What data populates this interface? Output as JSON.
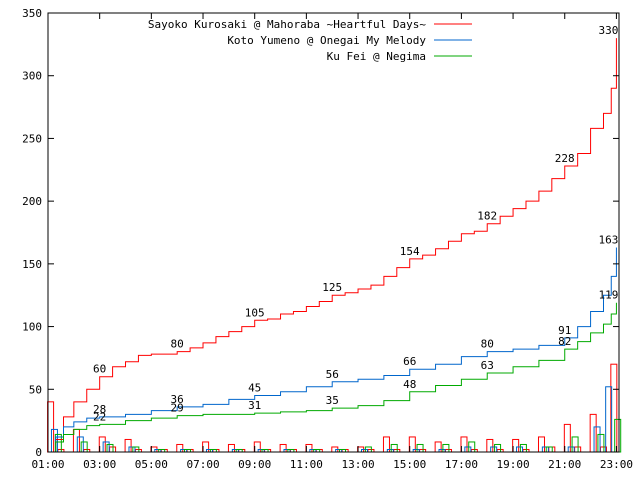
{
  "chart_data": {
    "type": "line",
    "title": "",
    "xlabel": "",
    "ylabel": "",
    "xlim": [
      1,
      23.1
    ],
    "ylim": [
      0,
      350
    ],
    "x_ticks": [
      "01:00",
      "03:00",
      "05:00",
      "07:00",
      "09:00",
      "11:00",
      "13:00",
      "15:00",
      "17:00",
      "19:00",
      "21:00",
      "23:00"
    ],
    "y_ticks": [
      "0",
      "50",
      "100",
      "150",
      "200",
      "250",
      "300",
      "350"
    ],
    "legend_position": "top-right",
    "grid": false,
    "series": [
      {
        "name": "Sayoko Kurosaki @ Mahoraba ~Heartful Days~",
        "color": "#ff0000",
        "points": [
          [
            1,
            0
          ],
          [
            1.3,
            10
          ],
          [
            1.6,
            28
          ],
          [
            2,
            40
          ],
          [
            2.5,
            50
          ],
          [
            3,
            60
          ],
          [
            3.5,
            68
          ],
          [
            4,
            72
          ],
          [
            4.5,
            77
          ],
          [
            5,
            78
          ],
          [
            5.5,
            78
          ],
          [
            6,
            80
          ],
          [
            6.5,
            83
          ],
          [
            7,
            87
          ],
          [
            7.5,
            92
          ],
          [
            8,
            96
          ],
          [
            8.5,
            100
          ],
          [
            9,
            105
          ],
          [
            9.5,
            106
          ],
          [
            10,
            110
          ],
          [
            10.5,
            112
          ],
          [
            11,
            116
          ],
          [
            11.5,
            120
          ],
          [
            12,
            125
          ],
          [
            12.5,
            127
          ],
          [
            13,
            130
          ],
          [
            13.5,
            133
          ],
          [
            14,
            140
          ],
          [
            14.5,
            147
          ],
          [
            15,
            154
          ],
          [
            15.5,
            157
          ],
          [
            16,
            162
          ],
          [
            16.5,
            168
          ],
          [
            17,
            174
          ],
          [
            17.5,
            176
          ],
          [
            18,
            182
          ],
          [
            18.5,
            188
          ],
          [
            19,
            194
          ],
          [
            19.5,
            200
          ],
          [
            20,
            208
          ],
          [
            20.5,
            218
          ],
          [
            21,
            228
          ],
          [
            21.5,
            238
          ],
          [
            22,
            258
          ],
          [
            22.5,
            270
          ],
          [
            22.8,
            290
          ],
          [
            23,
            330
          ]
        ],
        "labels": [
          [
            3,
            60
          ],
          [
            6,
            80
          ],
          [
            9,
            105
          ],
          [
            12,
            125
          ],
          [
            15,
            154
          ],
          [
            18,
            182
          ],
          [
            21,
            228
          ],
          [
            23,
            330
          ]
        ]
      },
      {
        "name": "Koto Yumeno @ Onegai My Melody",
        "color": "#0066cc",
        "points": [
          [
            1,
            0
          ],
          [
            1.3,
            12
          ],
          [
            1.6,
            20
          ],
          [
            2,
            24
          ],
          [
            2.5,
            27
          ],
          [
            3,
            28
          ],
          [
            4,
            30
          ],
          [
            5,
            33
          ],
          [
            6,
            36
          ],
          [
            7,
            38
          ],
          [
            8,
            42
          ],
          [
            9,
            45
          ],
          [
            10,
            48
          ],
          [
            11,
            52
          ],
          [
            12,
            56
          ],
          [
            13,
            58
          ],
          [
            14,
            61
          ],
          [
            15,
            66
          ],
          [
            16,
            70
          ],
          [
            17,
            76
          ],
          [
            18,
            80
          ],
          [
            19,
            82
          ],
          [
            20,
            85
          ],
          [
            21,
            91
          ],
          [
            21.5,
            100
          ],
          [
            22,
            112
          ],
          [
            22.5,
            125
          ],
          [
            22.8,
            140
          ],
          [
            23,
            163
          ]
        ],
        "labels": [
          [
            3,
            28
          ],
          [
            6,
            36
          ],
          [
            9,
            45
          ],
          [
            12,
            56
          ],
          [
            15,
            66
          ],
          [
            18,
            80
          ],
          [
            21,
            91
          ],
          [
            23,
            163
          ]
        ]
      },
      {
        "name": "Ku Fei @ Negima",
        "color": "#00aa00",
        "points": [
          [
            1,
            0
          ],
          [
            1.3,
            8
          ],
          [
            1.6,
            14
          ],
          [
            2,
            18
          ],
          [
            2.5,
            21
          ],
          [
            3,
            22
          ],
          [
            4,
            25
          ],
          [
            5,
            27
          ],
          [
            6,
            29
          ],
          [
            7,
            30
          ],
          [
            8,
            30
          ],
          [
            9,
            31
          ],
          [
            10,
            32
          ],
          [
            11,
            33
          ],
          [
            12,
            35
          ],
          [
            13,
            37
          ],
          [
            14,
            41
          ],
          [
            15,
            48
          ],
          [
            16,
            53
          ],
          [
            17,
            58
          ],
          [
            18,
            63
          ],
          [
            19,
            68
          ],
          [
            20,
            73
          ],
          [
            21,
            82
          ],
          [
            21.5,
            88
          ],
          [
            22,
            95
          ],
          [
            22.5,
            102
          ],
          [
            22.8,
            110
          ],
          [
            23,
            119
          ]
        ],
        "labels": [
          [
            3,
            22
          ],
          [
            6,
            29
          ],
          [
            9,
            31
          ],
          [
            12,
            35
          ],
          [
            15,
            48
          ],
          [
            18,
            63
          ],
          [
            21,
            82
          ],
          [
            23,
            119
          ]
        ]
      }
    ],
    "bars": [
      {
        "series": 0,
        "x": [
          1.1,
          1.5,
          2.1,
          2.5,
          3.1,
          3.5,
          4.1,
          4.5,
          5.1,
          5.5,
          6.1,
          6.5,
          7.1,
          7.5,
          8.1,
          8.5,
          9.1,
          9.5,
          10.1,
          10.5,
          11.1,
          11.5,
          12.1,
          12.5,
          13.1,
          13.5,
          14.1,
          14.5,
          15.1,
          15.5,
          16.1,
          16.5,
          17.1,
          17.5,
          18.1,
          18.5,
          19.1,
          19.5,
          20.1,
          20.5,
          21.1,
          21.5,
          22.1,
          22.5,
          22.9
        ],
        "values": [
          40,
          2,
          18,
          2,
          12,
          4,
          10,
          2,
          4,
          2,
          6,
          2,
          8,
          2,
          6,
          2,
          8,
          2,
          6,
          2,
          6,
          2,
          4,
          2,
          4,
          2,
          12,
          2,
          12,
          2,
          8,
          2,
          12,
          2,
          10,
          2,
          10,
          2,
          12,
          4,
          22,
          4,
          30,
          4,
          70
        ]
      },
      {
        "series": 1,
        "x": [
          1.25,
          2.25,
          3.25,
          4.25,
          5.25,
          6.25,
          7.25,
          8.25,
          9.25,
          10.25,
          11.25,
          12.25,
          13.25,
          14.25,
          15.25,
          16.25,
          17.25,
          18.25,
          19.25,
          20.25,
          21.25,
          22.25,
          22.7
        ],
        "values": [
          18,
          12,
          8,
          4,
          2,
          2,
          2,
          2,
          2,
          2,
          2,
          2,
          2,
          2,
          2,
          2,
          4,
          4,
          4,
          4,
          4,
          20,
          52
        ]
      },
      {
        "series": 2,
        "x": [
          1.4,
          2.4,
          3.4,
          4.4,
          5.4,
          6.4,
          7.4,
          8.4,
          9.4,
          10.4,
          11.4,
          12.4,
          13.4,
          14.4,
          15.4,
          16.4,
          17.4,
          18.4,
          19.4,
          20.4,
          21.4,
          22.4,
          23.05
        ],
        "values": [
          14,
          8,
          6,
          4,
          2,
          2,
          2,
          2,
          2,
          2,
          2,
          2,
          4,
          6,
          6,
          6,
          8,
          6,
          6,
          4,
          12,
          14,
          26
        ]
      }
    ]
  }
}
